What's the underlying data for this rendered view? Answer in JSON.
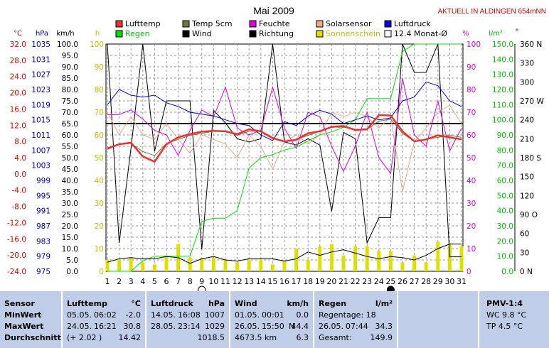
{
  "title": "Mai 2009",
  "station": "AKTUELL IN ALDINGEN 654mNN",
  "legend": [
    {
      "label": "Lufttemp",
      "color": "#f03030"
    },
    {
      "label": "Temp 5cm",
      "color": "#6e7a38"
    },
    {
      "label": "Feuchte",
      "color": "#e000e0"
    },
    {
      "label": "Solarsensor",
      "color": "#f0a888"
    },
    {
      "label": "Luftdruck",
      "color": "#0000e0"
    },
    {
      "label": "Regen",
      "color": "#00e000"
    },
    {
      "label": "Wind",
      "color": "#000000"
    },
    {
      "label": "Richtung",
      "color": "#000000"
    },
    {
      "label": "Sonnenschein",
      "color": "#e0e000"
    },
    {
      "label": "12.4 Monat-Ø",
      "color": "#ffffff"
    }
  ],
  "axis_units": {
    "temp": "°C",
    "press": "hPa",
    "wind": "km/h",
    "h": "h",
    "pct": "%",
    "rain": "l/m²",
    "dir": "°"
  },
  "chart_data": {
    "type": "line",
    "x": [
      1,
      2,
      3,
      4,
      5,
      6,
      7,
      8,
      9,
      10,
      11,
      12,
      13,
      14,
      15,
      16,
      17,
      18,
      19,
      20,
      21,
      22,
      23,
      24,
      25,
      26,
      27,
      28,
      29,
      30,
      31
    ],
    "temp_ticks": [
      "32.0",
      "28.0",
      "24.0",
      "20.0",
      "16.0",
      "12.0",
      "8.0",
      "4.0",
      "0.0",
      "-4.0",
      "-8.0",
      "-12.0",
      "-16.0",
      "-20.0",
      "-24.0"
    ],
    "press_ticks": [
      "1035",
      "1031",
      "1027",
      "1023",
      "1019",
      "1015",
      "1011",
      "1007",
      "1003",
      "999",
      "995",
      "991",
      "987",
      "983",
      "979",
      "975"
    ],
    "wind_ticks": [
      "100.0",
      "95.0",
      "90.0",
      "85.0",
      "80.0",
      "75.0",
      "70.0",
      "65.0",
      "60.0",
      "55.0",
      "50.0",
      "45.0",
      "40.0",
      "35.0",
      "30.0",
      "25.0",
      "20.0",
      "15.0",
      "10.0",
      "5.0",
      "0.0"
    ],
    "h_ticks": [
      "100",
      "90",
      "80",
      "70",
      "60",
      "50",
      "40",
      "30",
      "20",
      "10",
      "0"
    ],
    "pct_ticks": [
      "100",
      "90",
      "80",
      "70",
      "60",
      "50",
      "40",
      "30",
      "20",
      "10",
      "0"
    ],
    "rain_ticks": [
      "150.0",
      "140.0",
      "130.0",
      "120.0",
      "110.0",
      "100.0",
      "90.0",
      "80.0",
      "70.0",
      "60.0",
      "50.0",
      "40.0",
      "30.0",
      "20.0",
      "10.0",
      "0.0"
    ],
    "dir_ticks": [
      "360 N",
      "330",
      "300",
      "270 W",
      "240",
      "210",
      "180 S",
      "150",
      "120",
      "90 O",
      "60",
      "30",
      "0 N"
    ],
    "series": [
      {
        "name": "Lufttemp",
        "color": "#f03030",
        "width": 2.5,
        "values": [
          6.3,
          7.3,
          7.7,
          4.3,
          3.0,
          7.3,
          9.0,
          9.8,
          10.4,
          10.6,
          10.5,
          9.8,
          11.0,
          10.5,
          8.8,
          8.0,
          8.4,
          10.0,
          10.5,
          11.6,
          11.8,
          10.8,
          11.0,
          14.5,
          14.4,
          10.5,
          8.0,
          8.5,
          9.5,
          9.0,
          8.5
        ]
      },
      {
        "name": "Temp 5cm",
        "color": "#6e7a38",
        "width": 1,
        "values": [
          6.0,
          7.3,
          7.5,
          5.5,
          4.5,
          7.5,
          8.5,
          9.5,
          10.0,
          10.5,
          10.5,
          9.5,
          10.5,
          10.5,
          9.0,
          8.0,
          8.5,
          9.5,
          10.5,
          11.5,
          11.5,
          11.0,
          11.0,
          13.0,
          13.5,
          10.0,
          8.0,
          8.5,
          9.0,
          9.5,
          9.0
        ]
      },
      {
        "name": "Feuchte",
        "color": "#e000e0",
        "width": 1,
        "values": [
          69,
          69,
          71,
          67,
          62,
          60,
          51,
          62,
          71,
          68,
          81,
          63,
          60,
          62,
          81,
          63,
          54,
          70,
          68,
          55,
          44,
          55,
          70,
          50,
          43,
          85,
          60,
          55,
          75,
          53,
          63
        ]
      },
      {
        "name": "Solarsensor",
        "color": "#f0a888",
        "width": 1,
        "values": [
          70,
          60,
          68,
          60,
          58,
          65,
          58,
          52,
          60,
          58,
          56,
          50,
          60,
          55,
          45,
          57,
          60,
          56,
          60,
          70,
          68,
          70,
          68,
          63,
          68,
          35,
          57,
          63,
          70,
          73,
          65
        ]
      },
      {
        "name": "Luftdruck",
        "color": "#0000e0",
        "width": 1,
        "values": [
          1019.0,
          1023.0,
          1021.5,
          1021.0,
          1021.5,
          1019.5,
          1018.5,
          1017.0,
          1016.5,
          1016.0,
          1015.0,
          1014.0,
          1013.5,
          1011.0,
          1009.5,
          1014.5,
          1013.5,
          1016.0,
          1017.5,
          1016.5,
          1014.0,
          1015.0,
          1016.0,
          1015.0,
          1015.5,
          1020.0,
          1021.0,
          1025.0,
          1024.0,
          1020.0,
          1018.5
        ]
      },
      {
        "name": "Regen",
        "color": "#00e000",
        "width": 1,
        "values": [
          0,
          0,
          0,
          7,
          10,
          10,
          10,
          10,
          33,
          35,
          35,
          40,
          68,
          75,
          77,
          80,
          82,
          86,
          90,
          92,
          95,
          100,
          114,
          114,
          114,
          145,
          150,
          150,
          150,
          150,
          150
        ]
      },
      {
        "name": "Wind",
        "color": "#000000",
        "width": 1,
        "values": [
          4.0,
          5.5,
          6.0,
          5.5,
          5.5,
          6.5,
          6.0,
          3.5,
          5.5,
          6.5,
          5.0,
          4.5,
          5.5,
          5.5,
          5.5,
          4.5,
          5.5,
          8.5,
          7.0,
          8.5,
          9.5,
          8.0,
          6.5,
          5.5,
          6.5,
          6.0,
          5.0,
          7.0,
          10.0,
          12.0,
          12.0
        ]
      },
      {
        "name": "Richtung",
        "color": "#000000",
        "width": 1,
        "values": [
          360,
          45,
          195,
          360,
          190,
          270,
          270,
          270,
          35,
          255,
          235,
          210,
          205,
          210,
          360,
          205,
          200,
          210,
          200,
          95,
          220,
          210,
          45,
          85,
          85,
          360,
          315,
          315,
          360,
          23,
          23
        ]
      }
    ],
    "sunshine_color": "#e0e000",
    "sunshine": [
      5,
      5,
      6,
      4,
      3,
      7,
      12,
      6,
      6,
      6,
      5,
      4,
      5,
      5,
      3,
      5,
      10,
      5,
      11,
      12,
      7,
      11,
      11,
      9,
      9,
      4,
      7,
      4,
      13,
      12,
      11
    ],
    "monthly_mean_temp": 12.4,
    "marker_days": [
      9,
      25
    ]
  },
  "table": {
    "labels": {
      "sensor": "Sensor",
      "min": "MinWert",
      "max": "MaxWert",
      "avg": "Durchschnitt"
    },
    "lufttemp": {
      "head": "Lufttemp",
      "unit": "°C",
      "min_date": "05.05.",
      "min_time": "06:02",
      "min_val": "-2.0",
      "max_date": "24.05.",
      "max_time": "16:21",
      "max_val": "30.8",
      "avg_note": "(+ 2.02 )",
      "avg_val": "14.42"
    },
    "luftdruck": {
      "head": "Luftdruck",
      "unit": "hPa",
      "min_date": "14.05.",
      "min_time": "16:08",
      "min_val": "1007",
      "max_date": "28.05.",
      "max_time": "23:14",
      "max_val": "1029",
      "avg_val": "1018.5"
    },
    "wind": {
      "head": "Wind",
      "unit": "km/h",
      "min_date": "01.05.",
      "min_time": "00:01",
      "min_val": "0.0",
      "max_date": "26.05.",
      "max_time": "15:50",
      "max_dir": "N",
      "max_val": "44.4",
      "sum_km": "4673.5 km",
      "avg_val": "6.3"
    },
    "regen": {
      "head": "Regen",
      "unit": "l/m²",
      "days": "Regentage: 18",
      "max_date": "26.05.",
      "max_time": "07:44",
      "max_val": "34.3",
      "total_label": "Gesamt:",
      "total_val": "149.9"
    },
    "pmv": {
      "head": "PMV-1:4",
      "wc": "WC 9.8 °C",
      "tp": "TP 4.5 °C"
    }
  }
}
